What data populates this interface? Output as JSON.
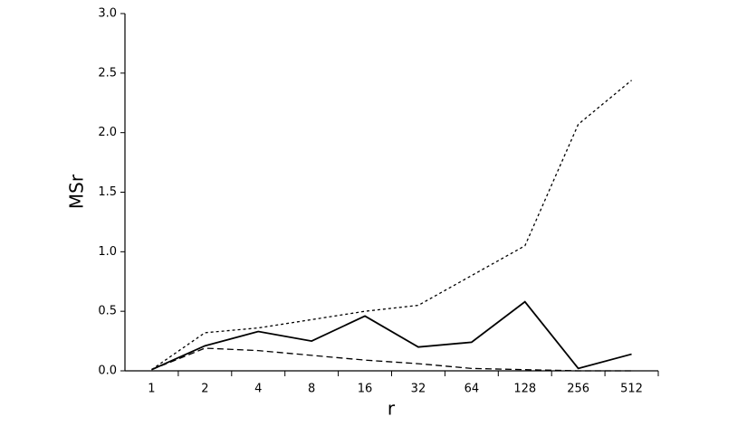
{
  "chart_data": {
    "type": "line",
    "x_label": "r",
    "y_label": "MSr",
    "categories": [
      "1",
      "2",
      "4",
      "8",
      "16",
      "32",
      "64",
      "128",
      "256",
      "512"
    ],
    "series": [
      {
        "color": "#000000",
        "style": "solid",
        "values": [
          0.01,
          0.21,
          0.33,
          0.25,
          0.46,
          0.2,
          0.24,
          0.58,
          0.02,
          0.14
        ]
      },
      {
        "color": "#000000",
        "style": "dotted",
        "values": [
          0.01,
          0.32,
          0.36,
          0.43,
          0.5,
          0.55,
          0.8,
          1.05,
          2.07,
          2.44
        ]
      },
      {
        "color": "#000000",
        "style": "dashed",
        "values": [
          0.01,
          0.19,
          0.17,
          0.13,
          0.09,
          0.06,
          0.02,
          0.01,
          0.0,
          0.0
        ]
      }
    ],
    "ylim": [
      0,
      3
    ],
    "yticks": [
      {
        "value": 0,
        "label": "0.0"
      },
      {
        "value": 0.5,
        "label": "0.5"
      },
      {
        "value": 1,
        "label": "1.0"
      },
      {
        "value": 1.5,
        "label": "1.5"
      },
      {
        "value": 2,
        "label": "2.0"
      },
      {
        "value": 2.5,
        "label": "2.5"
      },
      {
        "value": 3,
        "label": "3.0"
      }
    ],
    "grid": false
  }
}
